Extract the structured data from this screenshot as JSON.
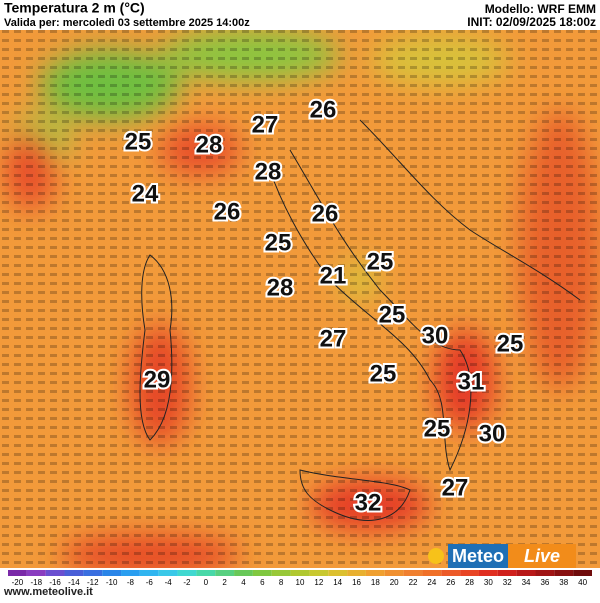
{
  "header": {
    "title": "Temperatura 2 m (°C)",
    "valid": "Valida per: mercoledì 03 settembre 2025 14:00z",
    "model": "Modello: WRF EMM",
    "init": "INIT: 02/09/2025 18:00z"
  },
  "labels": [
    25,
    28,
    27,
    26,
    28,
    24,
    26,
    26,
    25,
    21,
    25,
    28,
    25,
    30,
    27,
    25,
    25,
    31,
    25,
    30,
    27,
    32,
    29
  ],
  "scale": [
    -20,
    -18,
    -16,
    -14,
    -12,
    -10,
    -8,
    -6,
    -4,
    -2,
    0,
    2,
    4,
    6,
    8,
    10,
    12,
    14,
    16,
    18,
    20,
    22,
    24,
    26,
    28,
    30,
    32,
    34,
    36,
    38,
    40
  ],
  "logo": {
    "left": "Meteo",
    "right": "Live"
  },
  "url": "www.meteolive.it"
}
